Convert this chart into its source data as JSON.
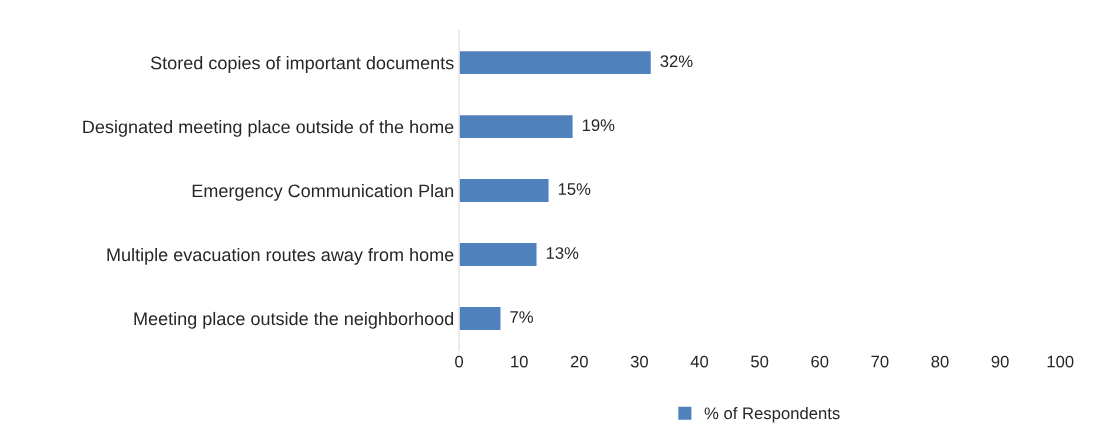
{
  "chart_data": {
    "type": "bar",
    "orientation": "horizontal",
    "categories": [
      "Stored copies of important documents",
      "Designated meeting place outside of the home",
      "Emergency Communication Plan",
      "Multiple evacuation routes away from home",
      "Meeting place outside the neighborhood"
    ],
    "series": [
      {
        "name": "% of Respondents",
        "color": "#4f81bd",
        "values": [
          32,
          19,
          15,
          13,
          7
        ],
        "value_labels": [
          "32%",
          "19%",
          "15%",
          "13%",
          "7%"
        ]
      }
    ],
    "xlim": [
      0,
      100
    ],
    "xticks": [
      0,
      10,
      20,
      30,
      40,
      50,
      60,
      70,
      80,
      90,
      100
    ],
    "grid": false,
    "legend": "bottom"
  }
}
